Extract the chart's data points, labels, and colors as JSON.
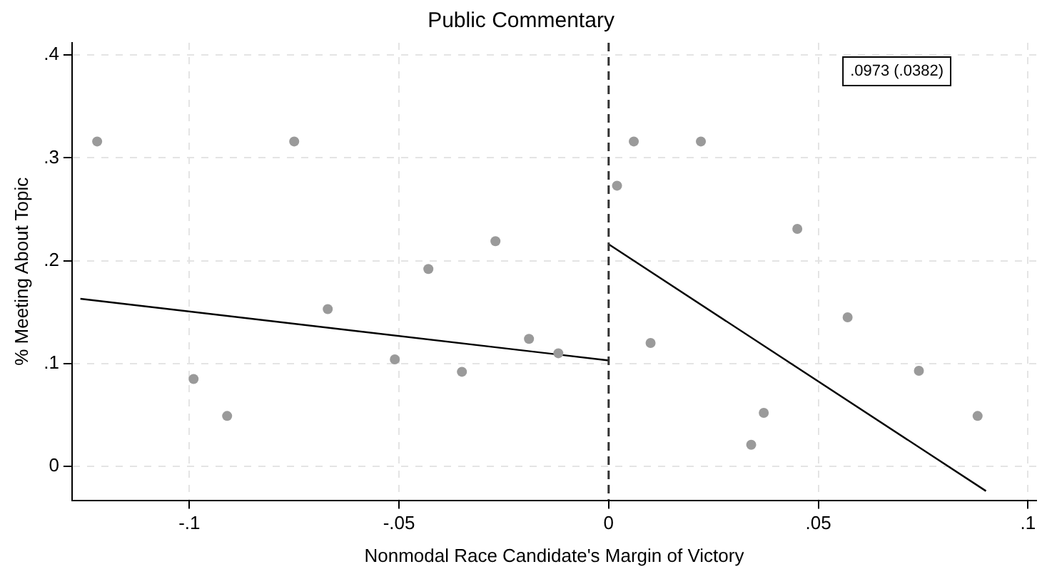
{
  "chart_data": {
    "type": "scatter",
    "title": "Public Commentary",
    "xlabel": "Nonmodal Race Candidate's Margin of Victory",
    "ylabel": "% Meeting About Topic",
    "xlim": [
      -0.128,
      0.102
    ],
    "ylim": [
      -0.033,
      0.412
    ],
    "xticks": [
      {
        "value": -0.1,
        "label": "-.1"
      },
      {
        "value": -0.05,
        "label": "-.05"
      },
      0,
      {
        "value": 0.05,
        "label": ".05"
      },
      {
        "value": 0.1,
        "label": ".1"
      }
    ],
    "yticks": [
      0,
      {
        "value": 0.1,
        "label": ".1"
      },
      {
        "value": 0.2,
        "label": ".2"
      },
      {
        "value": 0.3,
        "label": ".3"
      },
      {
        "value": 0.4,
        "label": ".4"
      }
    ],
    "grid": true,
    "legend": false,
    "series": [
      {
        "type": "scatter",
        "marker": "circle",
        "color": "#9a9a9a",
        "x": [
          -0.122,
          -0.099,
          -0.091,
          -0.075,
          -0.067,
          -0.051,
          -0.043,
          -0.035,
          -0.027,
          -0.019,
          -0.012,
          0.002,
          0.006,
          0.01,
          0.022,
          0.034,
          0.037,
          0.045,
          0.057,
          0.074,
          0.088
        ],
        "values": [
          0.316,
          0.085,
          0.049,
          0.316,
          0.153,
          0.104,
          0.192,
          0.092,
          0.219,
          0.124,
          0.11,
          0.273,
          0.316,
          0.12,
          0.316,
          0.021,
          0.052,
          0.231,
          0.145,
          0.093,
          0.049
        ]
      },
      {
        "type": "line",
        "marker": "none",
        "color": "#000000",
        "x": [
          -0.126,
          0
        ],
        "values": [
          0.163,
          0.103
        ]
      },
      {
        "type": "line",
        "marker": "none",
        "color": "#000000",
        "x": [
          0,
          0.09
        ],
        "values": [
          0.216,
          -0.024
        ]
      }
    ],
    "ref_lines": [
      {
        "axis": "x",
        "value": 0,
        "color": "#333333",
        "line_style": "dashed"
      }
    ],
    "annotations": [
      ".0973 (.0382)"
    ]
  }
}
